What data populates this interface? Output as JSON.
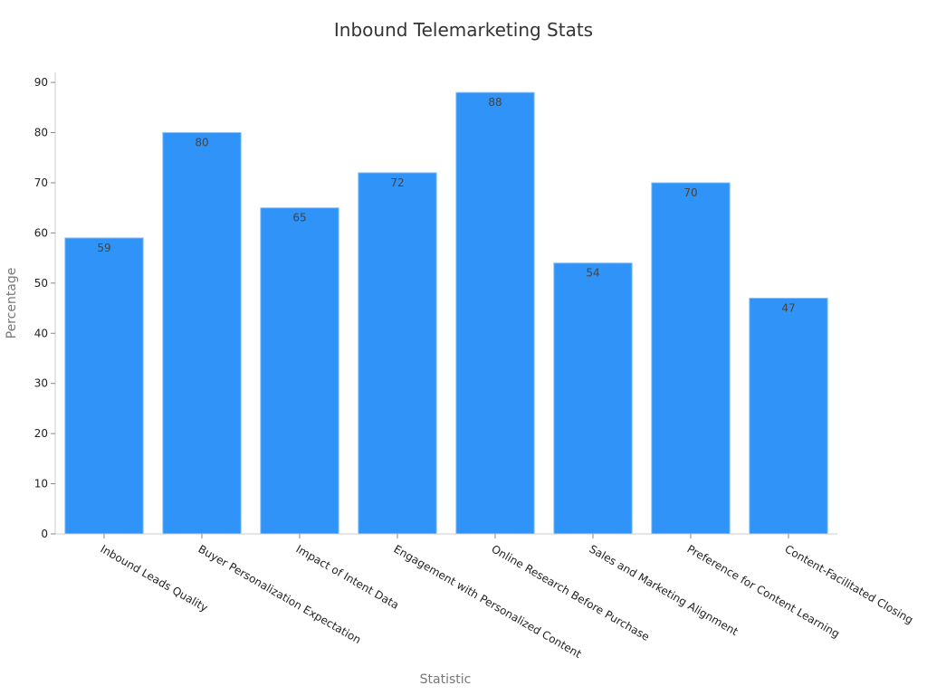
{
  "chart_data": {
    "type": "bar",
    "title": "Inbound Telemarketing Stats",
    "xlabel": "Statistic",
    "ylabel": "Percentage",
    "categories": [
      "Inbound Leads Quality",
      "Buyer Personalization Expectation",
      "Impact of Intent Data",
      "Engagement with Personalized Content",
      "Online Research Before Purchase",
      "Sales and Marketing Alignment",
      "Preference for Content Learning",
      "Content-Facilitated Closing"
    ],
    "values": [
      59,
      80,
      65,
      72,
      88,
      54,
      70,
      47
    ],
    "ylim": [
      0,
      92
    ],
    "yticks": [
      0,
      10,
      20,
      30,
      40,
      50,
      60,
      70,
      80,
      90
    ],
    "grid": false,
    "bar_color": "#2f93f7",
    "bar_edge_color": "#8cc3fb"
  }
}
